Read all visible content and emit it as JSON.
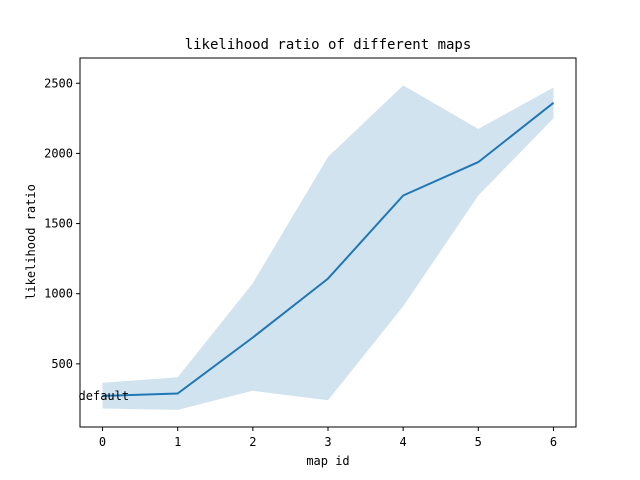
{
  "chart_data": {
    "type": "line",
    "title": "likelihood ratio of different maps",
    "xlabel": "map id",
    "ylabel": "likelihood ratio",
    "x": [
      0,
      1,
      2,
      3,
      4,
      5,
      6
    ],
    "xticks": [
      "0",
      "1",
      "2",
      "3",
      "4",
      "5",
      "6"
    ],
    "yticks": [
      "500",
      "1000",
      "1500",
      "2000",
      "2500"
    ],
    "xlim": [
      -0.3,
      6.3
    ],
    "ylim": [
      50,
      2680
    ],
    "series": [
      {
        "color": "#1f77b4",
        "values": [
          272,
          289,
          688,
          1108,
          1700,
          1938,
          2361
        ],
        "band_lower": [
          182,
          172,
          308,
          240,
          910,
          1700,
          2250
        ],
        "band_upper": [
          365,
          405,
          1075,
          1975,
          2485,
          2175,
          2470
        ],
        "band_color": "#d2e3f0"
      }
    ],
    "annotation": {
      "text": "default",
      "x": 0,
      "y": 365
    },
    "grid": false
  }
}
